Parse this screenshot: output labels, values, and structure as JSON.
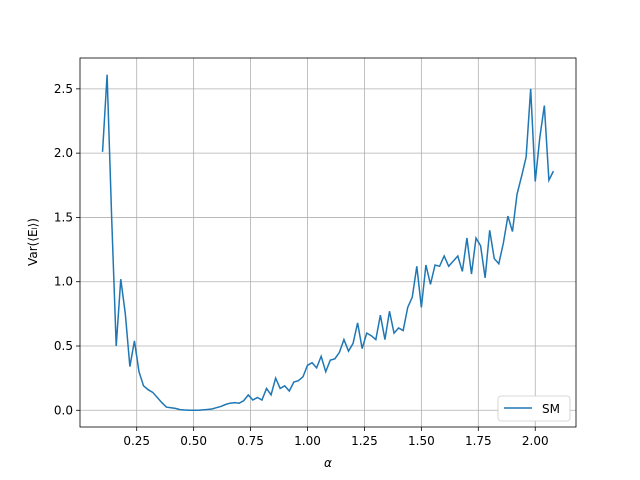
{
  "chart_data": {
    "type": "line",
    "x_label": "α",
    "y_label": "Var(⟨Eₗ⟩)",
    "x": [
      0.1,
      0.12,
      0.14,
      0.16,
      0.18,
      0.2,
      0.22,
      0.24,
      0.26,
      0.28,
      0.3,
      0.32,
      0.34,
      0.36,
      0.38,
      0.4,
      0.42,
      0.44,
      0.46,
      0.48,
      0.5,
      0.52,
      0.54,
      0.56,
      0.58,
      0.6,
      0.62,
      0.64,
      0.66,
      0.68,
      0.7,
      0.72,
      0.74,
      0.76,
      0.78,
      0.8,
      0.82,
      0.84,
      0.86,
      0.88,
      0.9,
      0.92,
      0.94,
      0.96,
      0.98,
      1.0,
      1.02,
      1.04,
      1.06,
      1.08,
      1.1,
      1.12,
      1.14,
      1.16,
      1.18,
      1.2,
      1.22,
      1.24,
      1.26,
      1.28,
      1.3,
      1.32,
      1.34,
      1.36,
      1.38,
      1.4,
      1.42,
      1.44,
      1.46,
      1.48,
      1.5,
      1.52,
      1.54,
      1.56,
      1.58,
      1.6,
      1.62,
      1.64,
      1.66,
      1.68,
      1.7,
      1.72,
      1.74,
      1.76,
      1.78,
      1.8,
      1.82,
      1.84,
      1.86,
      1.88,
      1.9,
      1.92,
      1.94,
      1.96,
      1.98,
      2.0,
      2.02,
      2.04,
      2.06,
      2.08
    ],
    "series": [
      {
        "name": "SM",
        "color": "#1f77b4",
        "values": [
          2.01,
          2.61,
          1.5,
          0.5,
          1.02,
          0.75,
          0.34,
          0.54,
          0.3,
          0.19,
          0.16,
          0.14,
          0.1,
          0.06,
          0.025,
          0.02,
          0.015,
          0.005,
          0.002,
          0.0,
          0.0,
          0.0,
          0.003,
          0.006,
          0.01,
          0.02,
          0.03,
          0.045,
          0.055,
          0.06,
          0.055,
          0.075,
          0.12,
          0.08,
          0.1,
          0.08,
          0.17,
          0.12,
          0.25,
          0.17,
          0.19,
          0.15,
          0.22,
          0.23,
          0.26,
          0.35,
          0.37,
          0.33,
          0.42,
          0.3,
          0.39,
          0.4,
          0.45,
          0.55,
          0.46,
          0.52,
          0.68,
          0.48,
          0.6,
          0.58,
          0.55,
          0.74,
          0.55,
          0.77,
          0.6,
          0.64,
          0.62,
          0.8,
          0.88,
          1.12,
          0.8,
          1.13,
          0.98,
          1.13,
          1.12,
          1.2,
          1.12,
          1.16,
          1.2,
          1.08,
          1.34,
          1.06,
          1.34,
          1.28,
          1.03,
          1.4,
          1.18,
          1.14,
          1.3,
          1.51,
          1.39,
          1.68,
          1.82,
          1.97,
          2.5,
          1.78,
          2.12,
          2.37,
          1.79,
          1.86
        ]
      }
    ],
    "xlim": [
      0.001,
      2.179
    ],
    "ylim": [
      -0.13,
      2.74
    ],
    "xticks": [
      0.25,
      {
        "value": 0.5,
        "label": "0.50"
      },
      0.75,
      {
        "value": 1,
        "label": "1.00"
      },
      1.25,
      {
        "value": 1.5,
        "label": "1.50"
      },
      1.75,
      {
        "value": 2,
        "label": "2.00"
      }
    ],
    "yticks": [
      {
        "value": 0,
        "label": "0.0"
      },
      0.5,
      {
        "value": 1,
        "label": "1.0"
      },
      1.5,
      {
        "value": 2,
        "label": "2.0"
      },
      2.5
    ],
    "grid": true,
    "legend": "lower right"
  }
}
